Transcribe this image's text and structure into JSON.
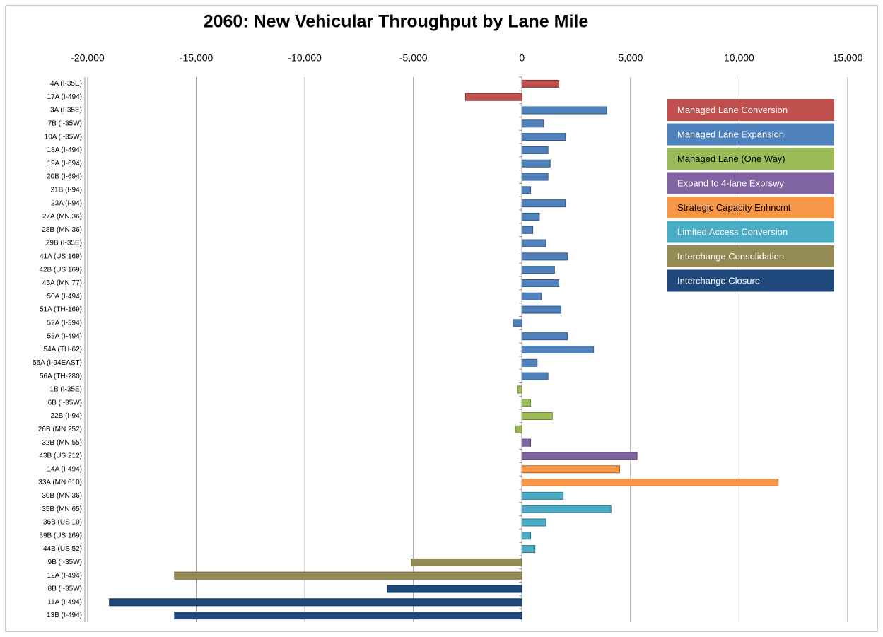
{
  "chart_data": {
    "type": "bar",
    "orientation": "horizontal",
    "title": "2060: New Vehicular Throughput by Lane Mile",
    "categories": [
      "4A (I-35E)",
      "17A (I-494)",
      "3A (I-35E)",
      "7B (I-35W)",
      "10A (I-35W)",
      "18A (I-494)",
      "19A (I-694)",
      "20B (I-694)",
      "21B (I-94)",
      "23A (I-94)",
      "27A (MN 36)",
      "28B (MN 36)",
      "29B (I-35E)",
      "41A (US 169)",
      "42B (US 169)",
      "45A (MN 77)",
      "50A (I-494)",
      "51A (TH-169)",
      "52A (I-394)",
      "53A (I-494)",
      "54A (TH-62)",
      "55A (I-94EAST)",
      "56A (TH-280)",
      "1B (I-35E)",
      "6B (I-35W)",
      "22B (I-94)",
      "26B (MN 252)",
      "32B (MN 55)",
      "43B (US 212)",
      "14A (I-494)",
      "33A (MN 610)",
      "30B (MN 36)",
      "35B (MN 65)",
      "36B (US 10)",
      "39B (US 169)",
      "44B (US 52)",
      "9B (I-35W)",
      "12A (I-494)",
      "8B (I-35W)",
      "11A (I-494)",
      "13B (I-494)"
    ],
    "series": [
      {
        "name": "Managed Lane Conversion",
        "color": "#c0504d",
        "values": [
          1700,
          -2600,
          null,
          null,
          null,
          null,
          null,
          null,
          null,
          null,
          null,
          null,
          null,
          null,
          null,
          null,
          null,
          null,
          null,
          null,
          null,
          null,
          null,
          null,
          null,
          null,
          null,
          null,
          null,
          null,
          null,
          null,
          null,
          null,
          null,
          null,
          null,
          null,
          null,
          null,
          null
        ]
      },
      {
        "name": "Managed Lane Expansion",
        "color": "#4f81bd",
        "values": [
          null,
          null,
          3900,
          1000,
          2000,
          1200,
          1300,
          1200,
          400,
          2000,
          800,
          500,
          1100,
          2100,
          1500,
          1700,
          900,
          1800,
          -400,
          2100,
          3300,
          700,
          1200,
          null,
          null,
          null,
          null,
          null,
          null,
          null,
          null,
          null,
          null,
          null,
          null,
          null,
          null,
          null,
          null,
          null,
          null
        ]
      },
      {
        "name": "Managed Lane (One Way)",
        "color": "#9bbb59",
        "values": [
          null,
          null,
          null,
          null,
          null,
          null,
          null,
          null,
          null,
          null,
          null,
          null,
          null,
          null,
          null,
          null,
          null,
          null,
          null,
          null,
          null,
          null,
          null,
          -200,
          400,
          1400,
          -300,
          null,
          null,
          null,
          null,
          null,
          null,
          null,
          null,
          null,
          null,
          null,
          null,
          null,
          null
        ]
      },
      {
        "name": "Expand to 4-lane Exprswy",
        "color": "#8064a2",
        "values": [
          null,
          null,
          null,
          null,
          null,
          null,
          null,
          null,
          null,
          null,
          null,
          null,
          null,
          null,
          null,
          null,
          null,
          null,
          null,
          null,
          null,
          null,
          null,
          null,
          null,
          null,
          null,
          400,
          5300,
          null,
          null,
          null,
          null,
          null,
          null,
          null,
          null,
          null,
          null,
          null,
          null
        ]
      },
      {
        "name": "Strategic Capacity Enhncmt",
        "color": "#f79646",
        "values": [
          null,
          null,
          null,
          null,
          null,
          null,
          null,
          null,
          null,
          null,
          null,
          null,
          null,
          null,
          null,
          null,
          null,
          null,
          null,
          null,
          null,
          null,
          null,
          null,
          null,
          null,
          null,
          null,
          null,
          4500,
          11800,
          null,
          null,
          null,
          null,
          null,
          null,
          null,
          null,
          null,
          null
        ]
      },
      {
        "name": "Limited Access Conversion",
        "color": "#4bacc6",
        "values": [
          null,
          null,
          null,
          null,
          null,
          null,
          null,
          null,
          null,
          null,
          null,
          null,
          null,
          null,
          null,
          null,
          null,
          null,
          null,
          null,
          null,
          null,
          null,
          null,
          null,
          null,
          null,
          null,
          null,
          null,
          null,
          1900,
          4100,
          1100,
          400,
          600,
          null,
          null,
          null,
          null,
          null
        ]
      },
      {
        "name": "Interchange Consolidation",
        "color": "#948a54",
        "values": [
          null,
          null,
          null,
          null,
          null,
          null,
          null,
          null,
          null,
          null,
          null,
          null,
          null,
          null,
          null,
          null,
          null,
          null,
          null,
          null,
          null,
          null,
          null,
          null,
          null,
          null,
          null,
          null,
          null,
          null,
          null,
          null,
          null,
          null,
          null,
          null,
          -5100,
          -16000,
          null,
          null,
          null
        ]
      },
      {
        "name": "Interchange Closure",
        "color": "#1f497d",
        "values": [
          null,
          null,
          null,
          null,
          null,
          null,
          null,
          null,
          null,
          null,
          null,
          null,
          null,
          null,
          null,
          null,
          null,
          null,
          null,
          null,
          null,
          null,
          null,
          null,
          null,
          null,
          null,
          null,
          null,
          null,
          null,
          null,
          null,
          null,
          null,
          null,
          null,
          null,
          -6200,
          -19000,
          -16000
        ]
      }
    ],
    "xlim": [
      -20000,
      15000
    ],
    "xticks": [
      {
        "value": -20000,
        "label": "-20,000"
      },
      {
        "value": -15000,
        "label": "-15,000"
      },
      {
        "value": -10000,
        "label": "-10,000"
      },
      {
        "value": -5000,
        "label": "-5,000"
      },
      0,
      {
        "value": 5000,
        "label": "5,000"
      },
      {
        "value": 10000,
        "label": "10,000"
      },
      {
        "value": 15000,
        "label": "15,000"
      }
    ],
    "grid": true,
    "legend": "upper right"
  }
}
